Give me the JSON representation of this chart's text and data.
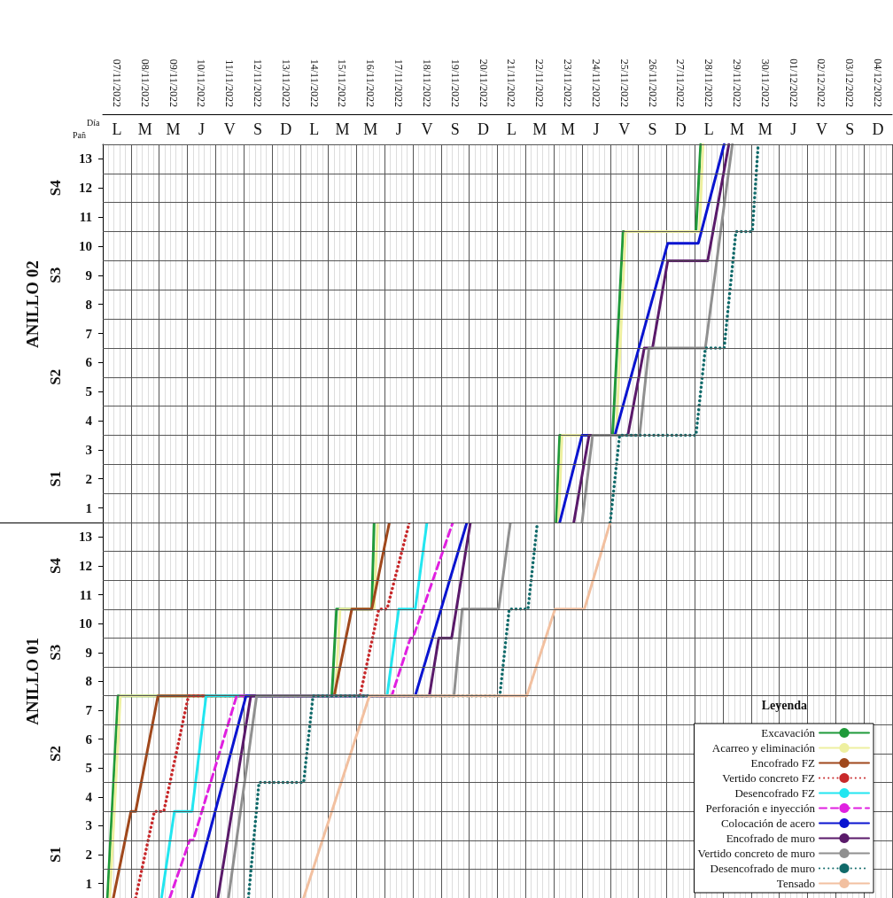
{
  "chart_data": [
    {
      "type": "line",
      "marker": "none",
      "grid": true,
      "xlim": [
        "2022-11-07T00:00",
        "2022-12-05T00:00"
      ],
      "ylim": [
        0.5,
        13.5
      ],
      "xticks": [
        {
          "value": "2022-11-07T12:00",
          "label": "07/11/2022"
        },
        {
          "value": "2022-11-08T12:00",
          "label": "08/11/2022"
        },
        {
          "value": "2022-11-09T12:00",
          "label": "09/11/2022"
        },
        {
          "value": "2022-11-10T12:00",
          "label": "10/11/2022"
        },
        {
          "value": "2022-11-11T12:00",
          "label": "11/11/2022"
        },
        {
          "value": "2022-11-12T12:00",
          "label": "12/11/2022"
        },
        {
          "value": "2022-11-13T12:00",
          "label": "13/11/2022"
        },
        {
          "value": "2022-11-14T12:00",
          "label": "14/11/2022"
        },
        {
          "value": "2022-11-15T12:00",
          "label": "15/11/2022"
        },
        {
          "value": "2022-11-16T12:00",
          "label": "16/11/2022"
        },
        {
          "value": "2022-11-17T12:00",
          "label": "17/11/2022"
        },
        {
          "value": "2022-11-18T12:00",
          "label": "18/11/2022"
        },
        {
          "value": "2022-11-19T12:00",
          "label": "19/11/2022"
        },
        {
          "value": "2022-11-20T12:00",
          "label": "20/11/2022"
        },
        {
          "value": "2022-11-21T12:00",
          "label": "21/11/2022"
        },
        {
          "value": "2022-11-22T12:00",
          "label": "22/11/2022"
        },
        {
          "value": "2022-11-23T12:00",
          "label": "23/11/2022"
        },
        {
          "value": "2022-11-24T12:00",
          "label": "24/11/2022"
        },
        {
          "value": "2022-11-25T12:00",
          "label": "25/11/2022"
        },
        {
          "value": "2022-11-26T12:00",
          "label": "26/11/2022"
        },
        {
          "value": "2022-11-27T12:00",
          "label": "27/11/2022"
        },
        {
          "value": "2022-11-28T12:00",
          "label": "28/11/2022"
        },
        {
          "value": "2022-11-29T12:00",
          "label": "29/11/2022"
        },
        {
          "value": "2022-11-30T12:00",
          "label": "30/11/2022"
        },
        {
          "value": "2022-12-01T12:00",
          "label": "01/12/2022"
        },
        {
          "value": "2022-12-02T12:00",
          "label": "02/12/2022"
        },
        {
          "value": "2022-12-03T12:00",
          "label": "03/12/2022"
        },
        {
          "value": "2022-12-04T12:00",
          "label": "04/12/2022"
        }
      ],
      "yticks": [
        1,
        2,
        3,
        4,
        5,
        6,
        7,
        8,
        9,
        10,
        11,
        12,
        13
      ],
      "annotations": [
        "Día",
        "Pañ",
        "S1",
        "S2",
        "S3",
        "S4",
        "ANILLO 02",
        "L",
        "M",
        "M",
        "J",
        "V",
        "S",
        "D",
        "L",
        "M",
        "M",
        "J",
        "V",
        "S",
        "D",
        "L",
        "M",
        "M",
        "J",
        "V",
        "S",
        "D",
        "L",
        "M",
        "M",
        "J",
        "V",
        "S",
        "D"
      ],
      "series": [
        {
          "color": "#1f9a3a",
          "line_style": "solid",
          "x": [
            "2022-11-23T02:00",
            "2022-11-23T05:00",
            "2022-11-25T02:00",
            "2022-11-25T11:00",
            "2022-11-28T01:00",
            "2022-11-28T05:00"
          ],
          "values": [
            0.5,
            3.5,
            3.5,
            10.5,
            10.5,
            13.5
          ]
        },
        {
          "color": "#eef0a0",
          "line_style": "solid",
          "x": [
            "2022-11-23T04:00",
            "2022-11-23T07:00",
            "2022-11-25T05:00",
            "2022-11-25T13:00",
            "2022-11-28T04:00",
            "2022-11-28T07:00"
          ],
          "values": [
            0.5,
            3.5,
            3.5,
            10.5,
            10.5,
            13.5
          ]
        },
        {
          "color": "#0a14d0",
          "line_style": "solid",
          "x": [
            "2022-11-23T05:00",
            "2022-11-24T00:00",
            "2022-11-25T04:00",
            "2022-11-27T01:00",
            "2022-11-28T03:00",
            "2022-11-29T01:00"
          ],
          "values": [
            0.5,
            3.5,
            3.5,
            10.1,
            10.1,
            13.5
          ]
        },
        {
          "color": "#5a1a6a",
          "line_style": "solid",
          "x": [
            "2022-11-23T17:00",
            "2022-11-24T06:00",
            "2022-11-25T15:00",
            "2022-11-26T05:00",
            "2022-11-26T12:00",
            "2022-11-27T01:00",
            "2022-11-28T11:00",
            "2022-11-29T05:00"
          ],
          "values": [
            0.5,
            3.5,
            3.5,
            6.5,
            6.5,
            9.5,
            9.5,
            13.5
          ]
        },
        {
          "color": "#909090",
          "line_style": "solid",
          "x": [
            "2022-11-24T00:00",
            "2022-11-24T09:00",
            "2022-11-26T01:00",
            "2022-11-26T09:00",
            "2022-11-28T09:00",
            "2022-11-28T22:00",
            "2022-11-29T08:00"
          ],
          "values": [
            0.5,
            3.5,
            3.5,
            6.5,
            6.5,
            10.5,
            13.5
          ]
        },
        {
          "color": "#106a6a",
          "line_style": "dotted",
          "x": [
            "2022-11-25T00:00",
            "2022-11-25T08:00",
            "2022-11-28T01:00",
            "2022-11-28T09:00",
            "2022-11-29T01:00",
            "2022-11-29T11:00",
            "2022-11-30T01:00",
            "2022-11-30T06:00"
          ],
          "values": [
            0.5,
            3.5,
            3.5,
            6.5,
            6.5,
            10.5,
            10.5,
            13.5
          ]
        }
      ]
    },
    {
      "type": "line",
      "marker": "none",
      "grid": true,
      "tick_labels": "y",
      "legend": "bottom right",
      "legend_title": "Leyenda",
      "xlim": [
        "2022-11-07T00:00",
        "2022-12-05T00:00"
      ],
      "ylim": [
        0.5,
        13.5
      ],
      "yticks": [
        1,
        2,
        3,
        4,
        5,
        6,
        7,
        8,
        9,
        10,
        11,
        12,
        13
      ],
      "annotations": [
        "S1",
        "S2",
        "S3",
        "S4",
        "ANILLO 01"
      ],
      "series": [
        {
          "name": "Excavación",
          "color": "#1f9a3a",
          "line_style": "solid",
          "x": [
            "2022-11-07T04:00",
            "2022-11-07T13:00",
            "2022-11-15T03:00",
            "2022-11-15T07:00",
            "2022-11-16T13:00",
            "2022-11-16T15:00"
          ],
          "values": [
            0.5,
            7.5,
            7.5,
            10.5,
            10.5,
            13.5
          ]
        },
        {
          "name": "Acarreo y eliminación",
          "color": "#eef0a0",
          "line_style": "solid",
          "x": [
            "2022-11-07T06:00",
            "2022-11-07T15:00",
            "2022-11-15T06:00",
            "2022-11-15T10:00",
            "2022-11-16T15:00",
            "2022-11-16T18:00"
          ],
          "values": [
            0.5,
            7.5,
            7.5,
            10.5,
            10.5,
            13.5
          ]
        },
        {
          "name": "Encofrado FZ",
          "color": "#a0481c",
          "line_style": "solid",
          "x": [
            "2022-11-07T09:00",
            "2022-11-08T00:00",
            "2022-11-08T04:00",
            "2022-11-08T23:00",
            "2022-11-15T05:00",
            "2022-11-15T20:00",
            "2022-11-16T13:00",
            "2022-11-17T04:00"
          ],
          "values": [
            0.5,
            3.5,
            3.5,
            7.5,
            7.5,
            10.5,
            10.5,
            13.5
          ]
        },
        {
          "name": "Vertido concreto FZ",
          "color": "#c8282a",
          "line_style": "dotted",
          "x": [
            "2022-11-08T04:00",
            "2022-11-08T20:00",
            "2022-11-09T04:00",
            "2022-11-10T01:00",
            "2022-11-16T03:00",
            "2022-11-16T19:00",
            "2022-11-17T02:00",
            "2022-11-17T21:00"
          ],
          "values": [
            0.5,
            3.5,
            3.5,
            7.5,
            7.5,
            10.5,
            10.5,
            13.5
          ]
        },
        {
          "name": "Desencofrado FZ",
          "color": "#22e6f0",
          "line_style": "solid",
          "x": [
            "2022-11-09T02:00",
            "2022-11-09T13:00",
            "2022-11-10T04:00",
            "2022-11-10T16:00",
            "2022-11-17T02:00",
            "2022-11-17T12:00",
            "2022-11-18T02:00",
            "2022-11-18T12:00"
          ],
          "values": [
            0.5,
            3.5,
            3.5,
            7.5,
            7.5,
            10.5,
            10.5,
            13.5
          ]
        },
        {
          "name": "Perforación e inyección",
          "color": "#e020e0",
          "line_style": "dashed",
          "x": [
            "2022-11-09T09:00",
            "2022-11-10T02:00",
            "2022-11-10T05:00",
            "2022-11-11T18:00",
            "2022-11-17T06:00",
            "2022-11-17T22:00",
            "2022-11-18T00:00",
            "2022-11-19T10:00"
          ],
          "values": [
            0.5,
            2.5,
            2.5,
            7.5,
            7.5,
            9.5,
            9.5,
            13.5
          ]
        },
        {
          "name": "Colocación de acero",
          "color": "#0a14d0",
          "line_style": "solid",
          "x": [
            "2022-11-10T04:00",
            "2022-11-12T02:00",
            "2022-11-18T02:00",
            "2022-11-19T22:00"
          ],
          "values": [
            0.5,
            7.5,
            7.5,
            13.5
          ]
        },
        {
          "name": "Encofrado de muro",
          "color": "#5a1a6a",
          "line_style": "solid",
          "x": [
            "2022-11-11T02:00",
            "2022-11-12T06:00",
            "2022-11-18T14:00",
            "2022-11-18T22:00",
            "2022-11-19T09:00",
            "2022-11-20T01:00"
          ],
          "values": [
            0.5,
            7.5,
            7.5,
            9.5,
            9.5,
            13.5
          ]
        },
        {
          "name": "Vertido concreto de muro",
          "color": "#909090",
          "line_style": "solid",
          "x": [
            "2022-11-11T11:00",
            "2022-11-12T11:00",
            "2022-11-19T11:00",
            "2022-11-19T18:00",
            "2022-11-21T01:00",
            "2022-11-21T11:00"
          ],
          "values": [
            0.5,
            7.5,
            7.5,
            10.5,
            10.5,
            13.5
          ]
        },
        {
          "name": "Desencofrado de muro",
          "color": "#106a6a",
          "line_style": "dotted",
          "x": [
            "2022-11-12T04:00",
            "2022-11-12T13:00",
            "2022-11-14T03:00",
            "2022-11-14T11:00",
            "2022-11-21T02:00",
            "2022-11-21T10:00",
            "2022-11-22T02:00",
            "2022-11-22T10:00"
          ],
          "values": [
            0.5,
            4.5,
            4.5,
            7.5,
            7.5,
            10.5,
            10.5,
            13.5
          ]
        },
        {
          "name": "Tensado",
          "color": "#f2c0a0",
          "line_style": "solid",
          "x": [
            "2022-11-14T03:00",
            "2022-11-16T11:00",
            "2022-11-22T01:00",
            "2022-11-23T01:00",
            "2022-11-24T02:00",
            "2022-11-25T00:00"
          ],
          "values": [
            0.5,
            7.5,
            7.5,
            10.5,
            10.5,
            13.5
          ]
        }
      ]
    }
  ]
}
